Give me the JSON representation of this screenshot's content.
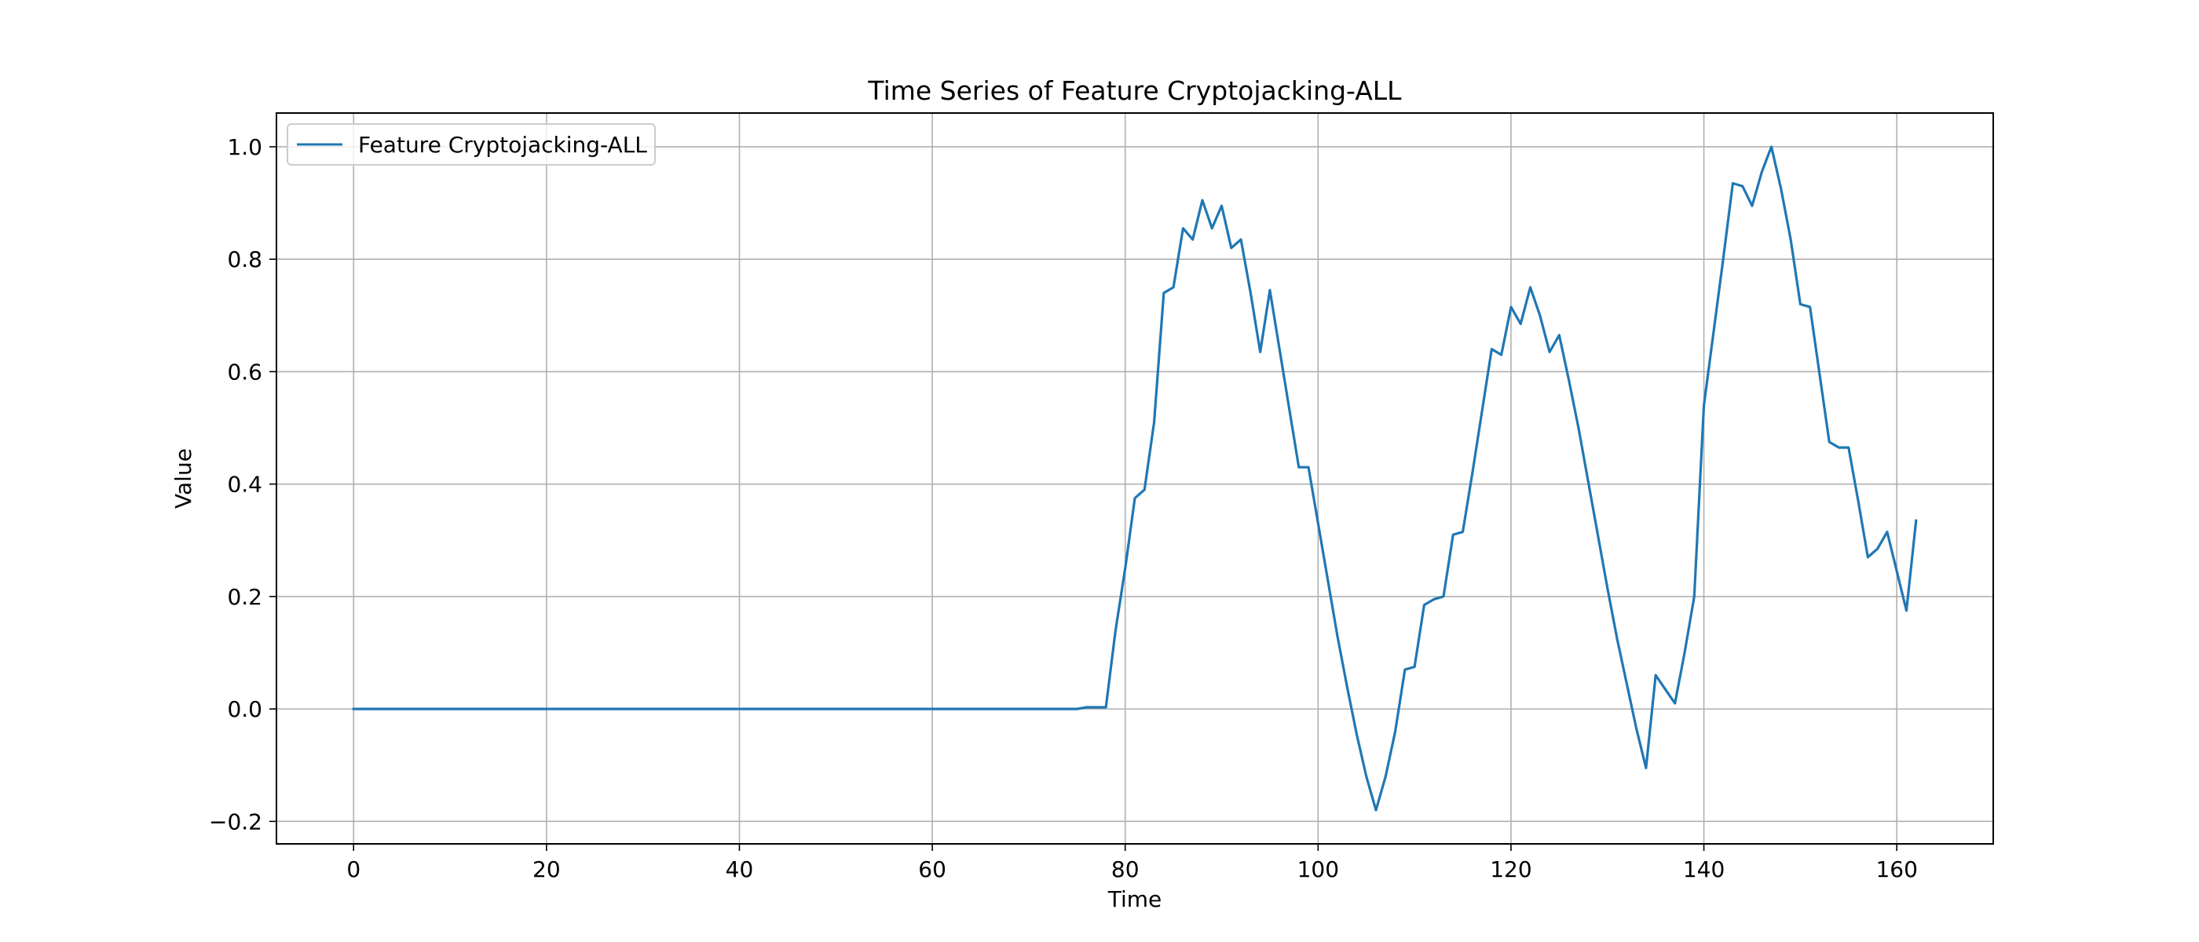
{
  "chart_data": {
    "type": "line",
    "title": "Time Series of Feature Cryptojacking-ALL",
    "xlabel": "Time",
    "ylabel": "Value",
    "xlim": [
      -8,
      170
    ],
    "ylim": [
      -0.24,
      1.06
    ],
    "xticks": [
      0,
      20,
      40,
      60,
      80,
      100,
      120,
      140,
      160
    ],
    "xtick_labels": [
      "0",
      "20",
      "40",
      "60",
      "80",
      "100",
      "120",
      "140",
      "160"
    ],
    "yticks": [
      -0.2,
      0.0,
      0.2,
      0.4,
      0.6,
      0.8,
      1.0
    ],
    "ytick_labels": [
      "−0.2",
      "0.0",
      "0.2",
      "0.4",
      "0.6",
      "0.8",
      "1.0"
    ],
    "grid": true,
    "legend": {
      "position": "upper-left"
    },
    "series": [
      {
        "name": "Feature Cryptojacking-ALL",
        "color": "#1f77b4",
        "x_start": 0,
        "values": [
          0,
          0,
          0,
          0,
          0,
          0,
          0,
          0,
          0,
          0,
          0,
          0,
          0,
          0,
          0,
          0,
          0,
          0,
          0,
          0,
          0,
          0,
          0,
          0,
          0,
          0,
          0,
          0,
          0,
          0,
          0,
          0,
          0,
          0,
          0,
          0,
          0,
          0,
          0,
          0,
          0,
          0,
          0,
          0,
          0,
          0,
          0,
          0,
          0,
          0,
          0,
          0,
          0,
          0,
          0,
          0,
          0,
          0,
          0,
          0,
          0,
          0,
          0,
          0,
          0,
          0,
          0,
          0,
          0,
          0,
          0,
          0,
          0,
          0,
          0,
          0,
          0.003,
          0.003,
          0.003,
          0.14,
          0.25,
          0.375,
          0.39,
          0.51,
          0.74,
          0.75,
          0.855,
          0.835,
          0.905,
          0.855,
          0.895,
          0.82,
          0.835,
          0.74,
          0.635,
          0.745,
          0.64,
          0.535,
          0.43,
          0.43,
          0.33,
          0.23,
          0.13,
          0.04,
          -0.045,
          -0.12,
          -0.18,
          -0.12,
          -0.04,
          0.07,
          0.075,
          0.185,
          0.195,
          0.2,
          0.31,
          0.315,
          0.42,
          0.53,
          0.64,
          0.63,
          0.715,
          0.685,
          0.75,
          0.7,
          0.635,
          0.665,
          0.585,
          0.5,
          0.405,
          0.31,
          0.215,
          0.125,
          0.045,
          -0.035,
          -0.105,
          0.06,
          0.035,
          0.01,
          0.1,
          0.2,
          0.54,
          0.67,
          0.8,
          0.935,
          0.93,
          0.895,
          0.955,
          1.0,
          0.925,
          0.835,
          0.72,
          0.715,
          0.595,
          0.475,
          0.465,
          0.465,
          0.37,
          0.27,
          0.285,
          0.315,
          0.245,
          0.175,
          0.335
        ]
      }
    ]
  }
}
